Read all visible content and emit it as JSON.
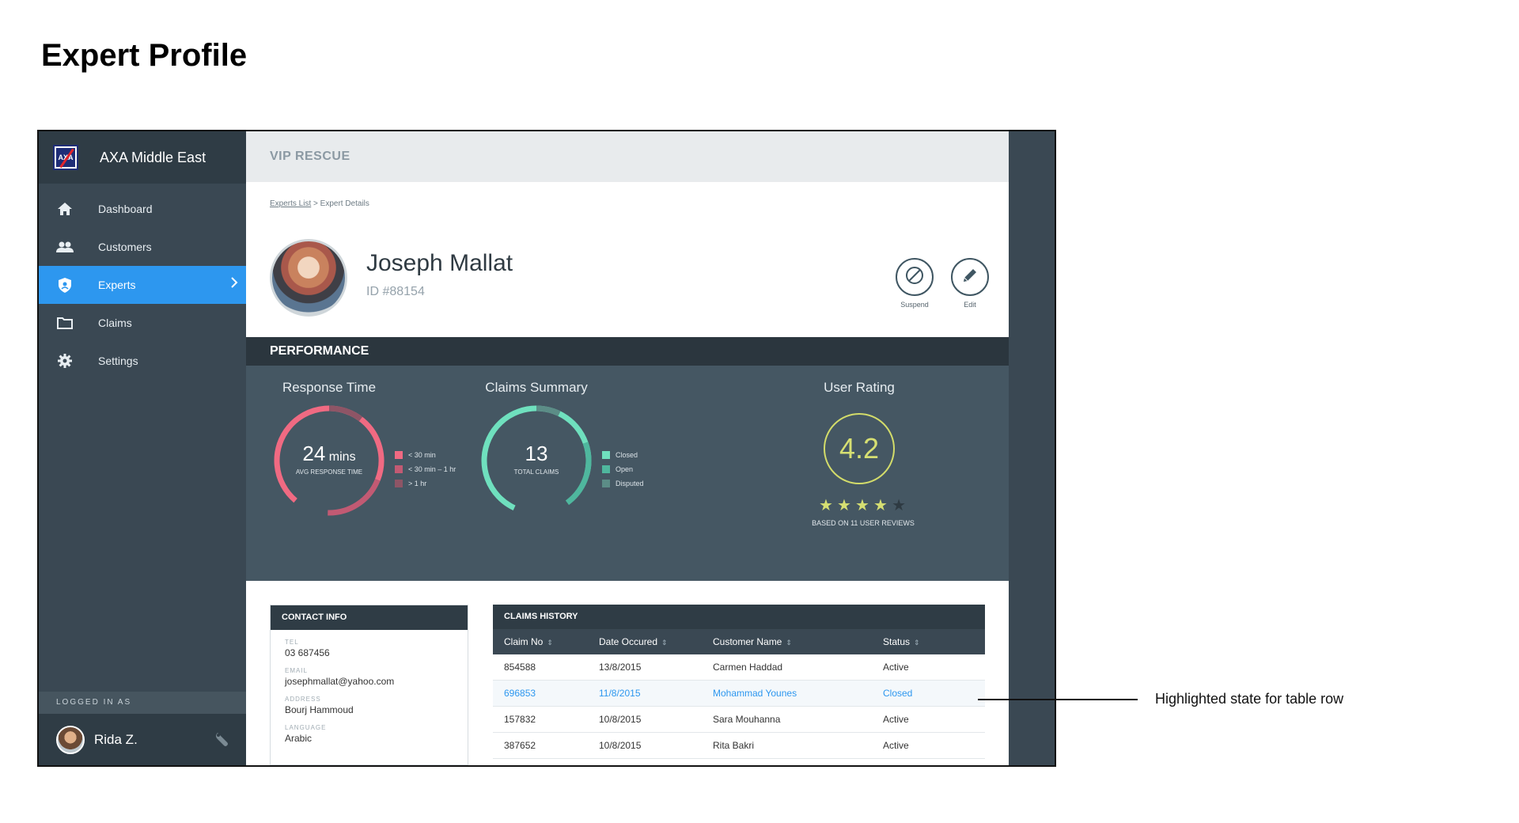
{
  "page": {
    "title": "Expert Profile"
  },
  "app": {
    "brand": "AXA Middle East",
    "logo_text": "AXA"
  },
  "sidebar": {
    "items": [
      {
        "label": "Dashboard",
        "icon": "home-icon"
      },
      {
        "label": "Customers",
        "icon": "people-icon"
      },
      {
        "label": "Experts",
        "icon": "shield-icon",
        "active": true
      },
      {
        "label": "Claims",
        "icon": "folder-icon"
      },
      {
        "label": "Settings",
        "icon": "gear-icon"
      }
    ],
    "logged_in_label": "LOGGED IN AS",
    "user": "Rida Z."
  },
  "header": {
    "title": "VIP RESCUE"
  },
  "breadcrumb": {
    "link": "Experts List",
    "separator": " > ",
    "current": "Expert Details"
  },
  "expert": {
    "name": "Joseph Mallat",
    "id": "ID #88154"
  },
  "actions": {
    "suspend": "Suspend",
    "edit": "Edit"
  },
  "performance": {
    "header": "PERFORMANCE",
    "response_time": {
      "title": "Response Time",
      "value": "24",
      "unit": "mins",
      "caption": "AVG RESPONSE TIME",
      "legend": [
        "< 30 min",
        "< 30 min – 1 hr",
        "> 1 hr"
      ],
      "colors": [
        "#f06a82",
        "#c25a73",
        "#8e5566"
      ]
    },
    "claims_summary": {
      "title": "Claims Summary",
      "value": "13",
      "caption": "TOTAL CLAIMS",
      "legend": [
        "Closed",
        "Open",
        "Disputed"
      ],
      "colors": [
        "#6fe0be",
        "#4fb79e",
        "#5c8d87"
      ]
    },
    "user_rating": {
      "title": "User Rating",
      "value": "4.2",
      "stars_filled": 4,
      "stars_total": 5,
      "caption": "BASED ON 11 USER REVIEWS",
      "color": "#d6df72"
    }
  },
  "contact": {
    "header": "CONTACT INFO",
    "fields": [
      {
        "key": "TEL",
        "value": "03 687456"
      },
      {
        "key": "EMAIL",
        "value": "josephmallat@yahoo.com"
      },
      {
        "key": "ADDRESS",
        "value": "Bourj Hammoud"
      },
      {
        "key": "LANGUAGE",
        "value": "Arabic"
      }
    ]
  },
  "claims_history": {
    "header": "CLAIMS HISTORY",
    "columns": [
      "Claim No",
      "Date Occured",
      "Customer Name",
      "Status"
    ],
    "rows": [
      [
        "854588",
        "13/8/2015",
        "Carmen Haddad",
        "Active"
      ],
      [
        "696853",
        "11/8/2015",
        "Mohammad Younes",
        "Closed"
      ],
      [
        "157832",
        "10/8/2015",
        "Sara Mouhanna",
        "Active"
      ],
      [
        "387652",
        "10/8/2015",
        "Rita Bakri",
        "Active"
      ]
    ],
    "highlighted_row": 1
  },
  "annotation": {
    "text": "Highlighted state for table row"
  }
}
